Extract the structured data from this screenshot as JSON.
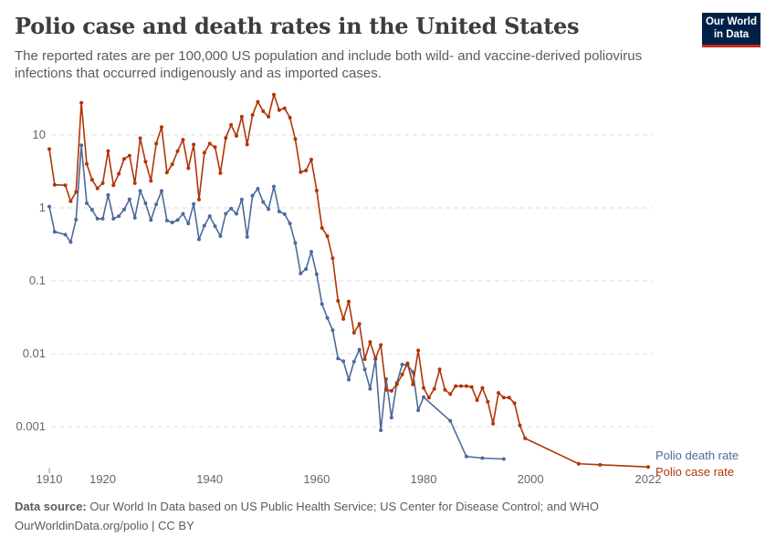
{
  "title": "Polio case and death rates in the United States",
  "subtitle": "The reported rates are per 100,000 US population and include both wild- and vaccine-derived poliovirus infections that occurred indigenously and as imported cases.",
  "logo": "Our World in Data",
  "footer": {
    "source_label": "Data source:",
    "source_text": "Our World In Data based on US Public Health Service; US Center for Disease Control; and WHO",
    "url": "OurWorldinData.org/polio | CC BY"
  },
  "chart_data": {
    "type": "line",
    "y_scale": "log",
    "ylim": [
      0.0002,
      50
    ],
    "xlim": [
      1910,
      2022
    ],
    "grid": "horizontal dashed",
    "legend": "inline labels at line ends (right)",
    "y_ticks": [
      {
        "value": 0.001,
        "label": "0.001"
      },
      {
        "value": 0.01,
        "label": "0.01"
      },
      {
        "value": 0.1,
        "label": "0.1"
      },
      {
        "value": 1,
        "label": "1"
      },
      {
        "value": 10,
        "label": "10"
      }
    ],
    "x_ticks": [
      {
        "value": 1910,
        "label": "1910"
      },
      {
        "value": 1920,
        "label": "1920"
      },
      {
        "value": 1940,
        "label": "1940"
      },
      {
        "value": 1960,
        "label": "1960"
      },
      {
        "value": 1980,
        "label": "1980"
      },
      {
        "value": 2000,
        "label": "2000"
      },
      {
        "value": 2022,
        "label": "2022"
      }
    ],
    "series": [
      {
        "name": "Polio death rate",
        "color": "#4c6a9c",
        "points": [
          [
            1910,
            1.04
          ],
          [
            1911,
            0.47
          ],
          [
            1913,
            0.43
          ],
          [
            1914,
            0.34
          ],
          [
            1915,
            0.69
          ],
          [
            1916,
            7.2
          ],
          [
            1917,
            1.16
          ],
          [
            1918,
            0.94
          ],
          [
            1919,
            0.71
          ],
          [
            1920,
            0.71
          ],
          [
            1921,
            1.5
          ],
          [
            1922,
            0.71
          ],
          [
            1923,
            0.77
          ],
          [
            1924,
            0.95
          ],
          [
            1925,
            1.31
          ],
          [
            1926,
            0.73
          ],
          [
            1927,
            1.71
          ],
          [
            1928,
            1.16
          ],
          [
            1929,
            0.68
          ],
          [
            1930,
            1.12
          ],
          [
            1931,
            1.71
          ],
          [
            1932,
            0.67
          ],
          [
            1933,
            0.63
          ],
          [
            1934,
            0.68
          ],
          [
            1935,
            0.83
          ],
          [
            1936,
            0.61
          ],
          [
            1937,
            1.13
          ],
          [
            1938,
            0.37
          ],
          [
            1939,
            0.57
          ],
          [
            1940,
            0.77
          ],
          [
            1941,
            0.56
          ],
          [
            1942,
            0.41
          ],
          [
            1943,
            0.83
          ],
          [
            1944,
            0.98
          ],
          [
            1945,
            0.83
          ],
          [
            1946,
            1.3
          ],
          [
            1947,
            0.4
          ],
          [
            1948,
            1.47
          ],
          [
            1949,
            1.83
          ],
          [
            1950,
            1.2
          ],
          [
            1951,
            0.96
          ],
          [
            1952,
            1.96
          ],
          [
            1953,
            0.89
          ],
          [
            1954,
            0.82
          ],
          [
            1955,
            0.61
          ],
          [
            1956,
            0.33
          ],
          [
            1957,
            0.126
          ],
          [
            1958,
            0.145
          ],
          [
            1959,
            0.25
          ],
          [
            1960,
            0.123
          ],
          [
            1961,
            0.048
          ],
          [
            1962,
            0.031
          ],
          [
            1963,
            0.021
          ],
          [
            1964,
            0.0086
          ],
          [
            1965,
            0.0079
          ],
          [
            1966,
            0.0044
          ],
          [
            1967,
            0.0078
          ],
          [
            1968,
            0.0114
          ],
          [
            1969,
            0.0061
          ],
          [
            1970,
            0.0033
          ],
          [
            1971,
            0.0084
          ],
          [
            1972,
            0.00089
          ],
          [
            1973,
            0.0045
          ],
          [
            1974,
            0.00133
          ],
          [
            1975,
            0.004
          ],
          [
            1976,
            0.0071
          ],
          [
            1977,
            0.007
          ],
          [
            1978,
            0.0056
          ],
          [
            1979,
            0.00168
          ],
          [
            1980,
            0.00254
          ],
          [
            1985,
            0.0012
          ],
          [
            1988,
            0.00039
          ],
          [
            1991,
            0.00037
          ],
          [
            1995,
            0.00036
          ]
        ]
      },
      {
        "name": "Polio case rate",
        "color": "#b13507",
        "points": [
          [
            1910,
            6.4
          ],
          [
            1911,
            2.07
          ],
          [
            1913,
            2.04
          ],
          [
            1914,
            1.23
          ],
          [
            1915,
            1.65
          ],
          [
            1916,
            27.6
          ],
          [
            1917,
            4.0
          ],
          [
            1918,
            2.42
          ],
          [
            1919,
            1.85
          ],
          [
            1920,
            2.18
          ],
          [
            1921,
            6.0
          ],
          [
            1922,
            2.04
          ],
          [
            1923,
            2.93
          ],
          [
            1924,
            4.7
          ],
          [
            1925,
            5.2
          ],
          [
            1926,
            2.18
          ],
          [
            1927,
            9.0
          ],
          [
            1928,
            4.3
          ],
          [
            1929,
            2.35
          ],
          [
            1930,
            7.6
          ],
          [
            1931,
            12.8
          ],
          [
            1932,
            3.05
          ],
          [
            1933,
            3.95
          ],
          [
            1934,
            6.0
          ],
          [
            1935,
            8.6
          ],
          [
            1936,
            3.5
          ],
          [
            1937,
            7.4
          ],
          [
            1938,
            1.3
          ],
          [
            1939,
            5.7
          ],
          [
            1940,
            7.6
          ],
          [
            1941,
            6.8
          ],
          [
            1942,
            3.0
          ],
          [
            1943,
            9.1
          ],
          [
            1944,
            13.7
          ],
          [
            1945,
            9.7
          ],
          [
            1946,
            17.8
          ],
          [
            1947,
            7.4
          ],
          [
            1948,
            18.8
          ],
          [
            1949,
            28.4
          ],
          [
            1950,
            21.1
          ],
          [
            1951,
            17.8
          ],
          [
            1952,
            35.8
          ],
          [
            1953,
            21.9
          ],
          [
            1954,
            23.2
          ],
          [
            1955,
            17.3
          ],
          [
            1956,
            8.8
          ],
          [
            1957,
            3.1
          ],
          [
            1958,
            3.25
          ],
          [
            1959,
            4.6
          ],
          [
            1960,
            1.73
          ],
          [
            1961,
            0.53
          ],
          [
            1962,
            0.41
          ],
          [
            1963,
            0.204
          ],
          [
            1964,
            0.053
          ],
          [
            1965,
            0.03
          ],
          [
            1966,
            0.052
          ],
          [
            1967,
            0.0194
          ],
          [
            1968,
            0.0257
          ],
          [
            1969,
            0.0084
          ],
          [
            1970,
            0.0145
          ],
          [
            1971,
            0.0086
          ],
          [
            1972,
            0.0132
          ],
          [
            1973,
            0.0032
          ],
          [
            1974,
            0.0031
          ],
          [
            1975,
            0.0038
          ],
          [
            1976,
            0.0052
          ],
          [
            1977,
            0.0074
          ],
          [
            1978,
            0.0038
          ],
          [
            1979,
            0.0111
          ],
          [
            1980,
            0.0034
          ],
          [
            1981,
            0.0025
          ],
          [
            1982,
            0.0033
          ],
          [
            1983,
            0.0061
          ],
          [
            1984,
            0.0032
          ],
          [
            1985,
            0.0028
          ],
          [
            1986,
            0.0036
          ],
          [
            1987,
            0.0036
          ],
          [
            1988,
            0.0036
          ],
          [
            1989,
            0.0035
          ],
          [
            1990,
            0.0023
          ],
          [
            1991,
            0.0034
          ],
          [
            1992,
            0.0022
          ],
          [
            1993,
            0.0011
          ],
          [
            1994,
            0.0029
          ],
          [
            1995,
            0.0025
          ],
          [
            1996,
            0.0025
          ],
          [
            1997,
            0.0021
          ],
          [
            1998,
            0.00104
          ],
          [
            1999,
            0.00069
          ],
          [
            2009,
            0.00031
          ],
          [
            2013,
            0.0003
          ],
          [
            2022,
            0.00028
          ]
        ]
      }
    ]
  }
}
